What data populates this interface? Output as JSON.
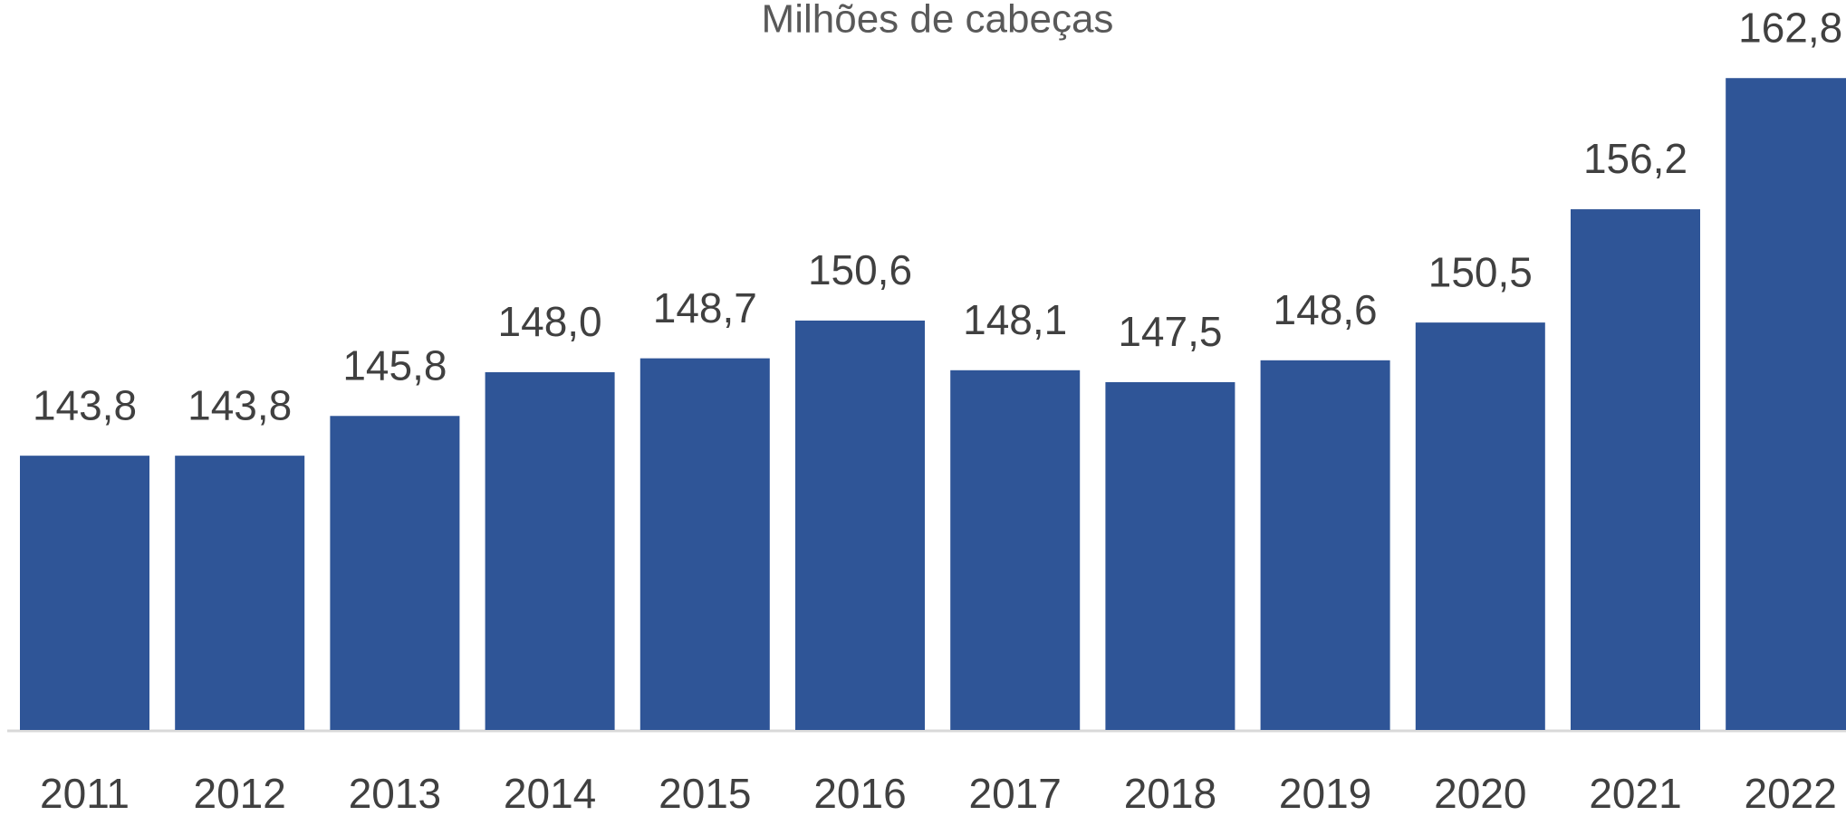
{
  "chart_data": {
    "type": "bar",
    "title": "Milhões de cabeças",
    "categories": [
      "2011",
      "2012",
      "2013",
      "2014",
      "2015",
      "2016",
      "2017",
      "2018",
      "2019",
      "2020",
      "2021",
      "2022"
    ],
    "values": [
      143.8,
      143.8,
      145.8,
      148.0,
      148.7,
      150.6,
      148.1,
      147.5,
      148.6,
      150.5,
      156.2,
      162.8
    ],
    "value_labels": [
      "143,8",
      "143,8",
      "145,8",
      "148,0",
      "148,7",
      "150,6",
      "148,1",
      "147,5",
      "148,6",
      "150,5",
      "156,2",
      "162,8"
    ],
    "color": "#2f5597",
    "ylim": [
      130,
      166
    ]
  }
}
